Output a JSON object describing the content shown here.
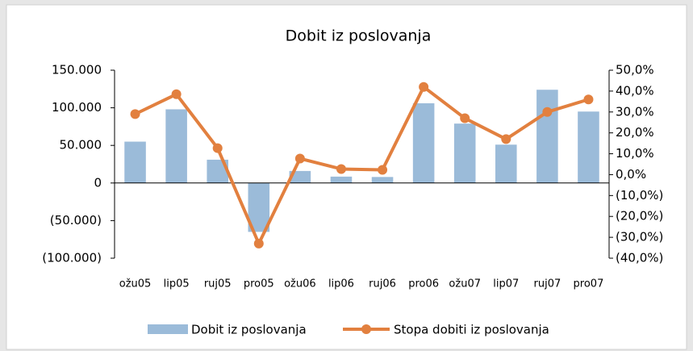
{
  "chart_data": {
    "type": "combo",
    "title": "Dobit iz poslovanja",
    "categories": [
      "ožu05",
      "lip05",
      "ruj05",
      "pro05",
      "ožu06",
      "lip06",
      "ruj06",
      "pro06",
      "ožu07",
      "lip07",
      "ruj07",
      "pro07"
    ],
    "series": [
      {
        "name": "Dobit iz poslovanja",
        "type": "bar",
        "color": "#9bbbd9",
        "values": [
          55000,
          98000,
          31000,
          -65000,
          16000,
          8500,
          8000,
          106000,
          79000,
          51000,
          124000,
          95000
        ]
      },
      {
        "name": "Stopa dobiti iz poslovanja",
        "type": "line",
        "axis": "y2",
        "color": "#e2803f",
        "values": [
          29,
          38.5,
          12.7,
          -33,
          7.7,
          2.7,
          2.3,
          42,
          27,
          17,
          30,
          36
        ]
      }
    ],
    "ylim": [
      -100000,
      150000
    ],
    "yticks": [
      {
        "value": -100000,
        "label": "(100.000)"
      },
      {
        "value": -50000,
        "label": "(50.000)"
      },
      0,
      {
        "value": 50000,
        "label": "50.000"
      },
      {
        "value": 100000,
        "label": "100.000"
      },
      {
        "value": 150000,
        "label": "150.000"
      }
    ],
    "y2lim": [
      -40,
      50
    ],
    "y2ticks": [
      {
        "value": -40,
        "label": "(40,0%)"
      },
      {
        "value": -30,
        "label": "(30,0%)"
      },
      {
        "value": -20,
        "label": "(20,0%)"
      },
      {
        "value": -10,
        "label": "(10,0%)"
      },
      {
        "value": 0,
        "label": "0,0%"
      },
      {
        "value": 10,
        "label": "10,0%"
      },
      {
        "value": 20,
        "label": "20,0%"
      },
      {
        "value": 30,
        "label": "30,0%"
      },
      {
        "value": 40,
        "label": "40,0%"
      },
      {
        "value": 50,
        "label": "50,0%"
      }
    ],
    "grid": false,
    "legend": "bottom"
  }
}
